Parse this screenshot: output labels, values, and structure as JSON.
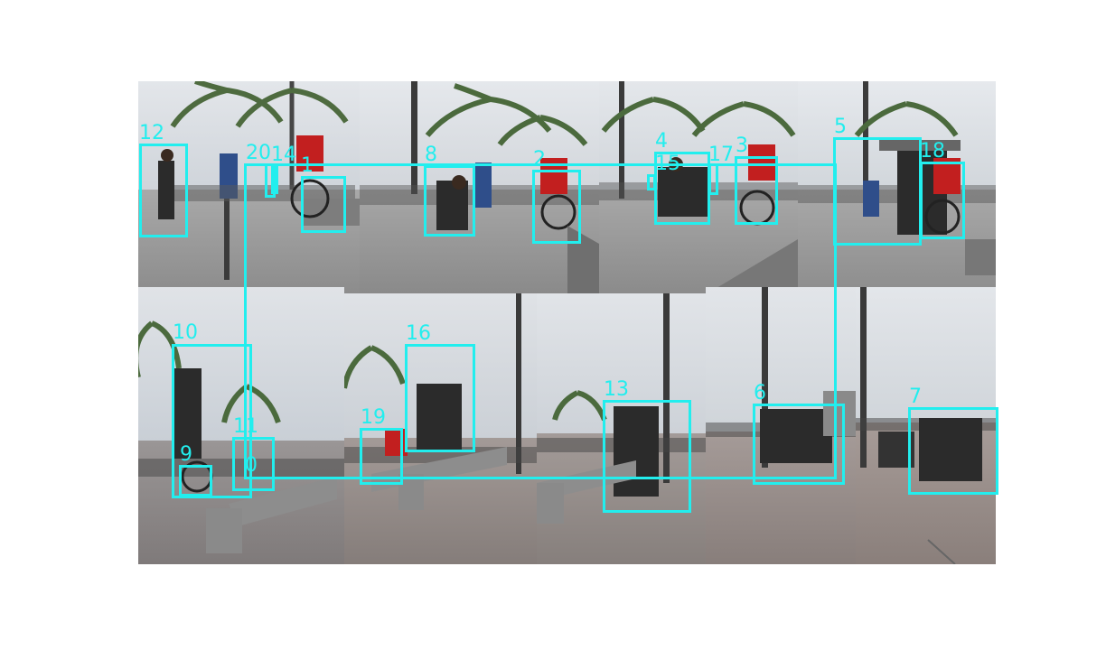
{
  "figure": {
    "description_colors": {
      "annotation": "#22eeee",
      "background": "#ffffff"
    },
    "detections": [
      {
        "id": "12",
        "label": "12"
      },
      {
        "id": "20",
        "label": "20"
      },
      {
        "id": "14",
        "label": "14"
      },
      {
        "id": "1",
        "label": "1"
      },
      {
        "id": "8",
        "label": "8"
      },
      {
        "id": "2",
        "label": "2"
      },
      {
        "id": "4",
        "label": "4"
      },
      {
        "id": "15",
        "label": "15"
      },
      {
        "id": "17",
        "label": "17"
      },
      {
        "id": "3",
        "label": "3"
      },
      {
        "id": "5",
        "label": "5"
      },
      {
        "id": "18",
        "label": "18"
      },
      {
        "id": "10",
        "label": "10"
      },
      {
        "id": "11",
        "label": "11"
      },
      {
        "id": "9",
        "label": "9"
      },
      {
        "id": "16",
        "label": "16"
      },
      {
        "id": "19",
        "label": "19"
      },
      {
        "id": "13",
        "label": "13"
      },
      {
        "id": "6",
        "label": "6"
      },
      {
        "id": "7",
        "label": "7"
      },
      {
        "id": "0",
        "label": "0"
      }
    ]
  }
}
